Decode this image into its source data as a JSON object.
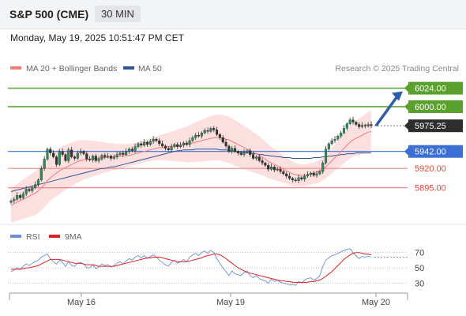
{
  "header": {
    "title": "S&P 500 (CME)",
    "interval": "30 MIN"
  },
  "datetime": "Monday, May 19, 2025 10:51:47 PM CET",
  "legend": {
    "ma20_bb": "MA 20 + Bollinger Bands",
    "ma50": "MA 50",
    "credit": "Research © 2025 Trading Central"
  },
  "rsi_legend": {
    "rsi": "RSI",
    "ma9": "9MA"
  },
  "colors": {
    "ma20": "#f47c7c",
    "ma50": "#2f5597",
    "bb_fill": "#fbd9d9",
    "resistance": "#5aa02c",
    "support": "#f08a8a",
    "pivot": "#3b6fd4",
    "current": "#333333",
    "arrow": "#2c5ea8",
    "rsi": "#6a8fd6",
    "rsi_ma": "#e02020"
  },
  "chart_data": [
    {
      "type": "candlestick",
      "x_ticks": [
        "May 16",
        "May 19",
        "May 20"
      ],
      "y_range": [
        5870,
        6040
      ],
      "levels": [
        {
          "label": "6024.00",
          "value": 6024.0,
          "kind": "resistance"
        },
        {
          "label": "6000.00",
          "value": 6000.0,
          "kind": "resistance"
        },
        {
          "label": "5975.25",
          "value": 5975.25,
          "kind": "current"
        },
        {
          "label": "5942.00",
          "value": 5942.0,
          "kind": "pivot"
        },
        {
          "label": "5920.00",
          "value": 5920.0,
          "kind": "support"
        },
        {
          "label": "5895.00",
          "value": 5895.0,
          "kind": "support"
        }
      ],
      "close": [
        5878,
        5880,
        5885,
        5882,
        5887,
        5893,
        5891,
        5895,
        5899,
        5905,
        5920,
        5932,
        5945,
        5940,
        5935,
        5925,
        5942,
        5938,
        5930,
        5944,
        5935,
        5933,
        5940,
        5942,
        5939,
        5932,
        5931,
        5936,
        5930,
        5932,
        5937,
        5935,
        5936,
        5933,
        5935,
        5938,
        5940,
        5938,
        5942,
        5945,
        5943,
        5948,
        5952,
        5950,
        5954,
        5951,
        5955,
        5958,
        5956,
        5952,
        5949,
        5946,
        5944,
        5948,
        5951,
        5948,
        5950,
        5953,
        5951,
        5956,
        5960,
        5963,
        5962,
        5966,
        5969,
        5968,
        5972,
        5970,
        5964,
        5960,
        5954,
        5949,
        5942,
        5946,
        5942,
        5940,
        5938,
        5941,
        5943,
        5938,
        5933,
        5935,
        5930,
        5927,
        5924,
        5919,
        5922,
        5918,
        5919,
        5916,
        5913,
        5910,
        5907,
        5905,
        5904,
        5908,
        5906,
        5910,
        5912,
        5914,
        5911,
        5913,
        5916,
        5927,
        5945,
        5952,
        5956,
        5958,
        5962,
        5966,
        5972,
        5978,
        5983,
        5980,
        5977,
        5974,
        5976,
        5975,
        5977,
        5975.25
      ],
      "ma20": [
        5872,
        5874,
        5876,
        5878,
        5880,
        5882,
        5884,
        5886,
        5888,
        5891,
        5895,
        5899,
        5904,
        5908,
        5911,
        5914,
        5917,
        5919,
        5921,
        5923,
        5925,
        5927,
        5929,
        5930,
        5931,
        5932,
        5932,
        5933,
        5933,
        5933,
        5934,
        5934,
        5934,
        5935,
        5935,
        5935,
        5936,
        5936,
        5937,
        5937,
        5938,
        5939,
        5940,
        5941,
        5942,
        5943,
        5944,
        5945,
        5946,
        5947,
        5947,
        5948,
        5948,
        5949,
        5949,
        5950,
        5950,
        5951,
        5951,
        5952,
        5953,
        5954,
        5955,
        5956,
        5957,
        5958,
        5959,
        5960,
        5960,
        5960,
        5959,
        5958,
        5957,
        5955,
        5953,
        5951,
        5949,
        5947,
        5945,
        5943,
        5941,
        5939,
        5937,
        5935,
        5932,
        5929,
        5927,
        5925,
        5923,
        5921,
        5919,
        5917,
        5915,
        5913,
        5912,
        5911,
        5911,
        5911,
        5912,
        5913,
        5914,
        5915,
        5917,
        5919,
        5922,
        5926,
        5930,
        5934,
        5938,
        5942,
        5946,
        5950,
        5954,
        5957,
        5959,
        5961,
        5963,
        5965,
        5967,
        5968
      ],
      "ma50": [
        5890,
        5891,
        5892,
        5893,
        5894,
        5895,
        5896,
        5897,
        5898,
        5899,
        5900,
        5901,
        5902,
        5903,
        5904,
        5905,
        5906,
        5907,
        5908,
        5909,
        5910,
        5911,
        5912,
        5913,
        5914,
        5915,
        5916,
        5917,
        5918,
        5919,
        5920,
        5920,
        5921,
        5922,
        5922,
        5923,
        5924,
        5925,
        5926,
        5927,
        5928,
        5929,
        5930,
        5931,
        5932,
        5933,
        5934,
        5935,
        5936,
        5937,
        5938,
        5939,
        5940,
        5941,
        5942,
        5943,
        5943,
        5944,
        5944,
        5944,
        5944,
        5945,
        5945,
        5945,
        5945,
        5945,
        5945,
        5945,
        5945,
        5944,
        5944,
        5944,
        5943,
        5943,
        5942,
        5942,
        5941,
        5941,
        5940,
        5940,
        5939,
        5939,
        5938,
        5938,
        5937,
        5937,
        5936,
        5936,
        5935,
        5935,
        5934,
        5934,
        5934,
        5933,
        5933,
        5933,
        5933,
        5933,
        5933,
        5933,
        5934,
        5934,
        5934,
        5935,
        5935,
        5936,
        5936,
        5937,
        5937,
        5938,
        5938,
        5939,
        5939,
        5939,
        5940,
        5940,
        5940,
        5940,
        5940,
        5940
      ],
      "bb_width": 22,
      "projection": {
        "from": 5975.25,
        "to": 6024.0
      }
    },
    {
      "type": "line",
      "name": "RSI",
      "y_ticks": [
        70,
        50,
        30
      ],
      "y_range": [
        20,
        80
      ],
      "rsi": [
        45,
        47,
        50,
        48,
        52,
        55,
        53,
        56,
        58,
        60,
        64,
        66,
        68,
        62,
        58,
        55,
        60,
        57,
        52,
        58,
        53,
        52,
        56,
        57,
        55,
        50,
        50,
        54,
        49,
        51,
        55,
        53,
        54,
        51,
        53,
        56,
        58,
        55,
        59,
        62,
        60,
        64,
        66,
        63,
        66,
        62,
        65,
        67,
        64,
        60,
        57,
        54,
        52,
        57,
        60,
        56,
        58,
        61,
        58,
        64,
        67,
        69,
        66,
        70,
        72,
        69,
        73,
        70,
        62,
        56,
        50,
        45,
        40,
        46,
        42,
        41,
        40,
        44,
        46,
        40,
        37,
        40,
        36,
        34,
        33,
        30,
        35,
        32,
        34,
        31,
        30,
        29,
        28,
        28,
        27,
        32,
        30,
        34,
        36,
        37,
        34,
        36,
        40,
        52,
        60,
        63,
        66,
        67,
        69,
        71,
        73,
        74,
        75,
        70,
        66,
        62,
        65,
        64,
        65,
        64
      ],
      "ma9": [
        48,
        48,
        48,
        48,
        49,
        50,
        50,
        51,
        52,
        53,
        55,
        57,
        59,
        61,
        61,
        61,
        61,
        60,
        59,
        58,
        57,
        56,
        56,
        56,
        55,
        54,
        54,
        54,
        53,
        52,
        52,
        52,
        52,
        52,
        52,
        53,
        54,
        55,
        56,
        57,
        58,
        59,
        60,
        61,
        62,
        63,
        63,
        64,
        64,
        64,
        63,
        62,
        61,
        60,
        59,
        58,
        58,
        58,
        58,
        59,
        60,
        61,
        62,
        63,
        65,
        66,
        67,
        68,
        68,
        67,
        65,
        62,
        59,
        56,
        53,
        50,
        48,
        46,
        44,
        43,
        42,
        41,
        40,
        39,
        38,
        37,
        36,
        35,
        34,
        33,
        33,
        32,
        32,
        31,
        31,
        31,
        31,
        31,
        31,
        32,
        32,
        33,
        34,
        36,
        39,
        42,
        45,
        49,
        53,
        57,
        61,
        64,
        67,
        69,
        70,
        70,
        69,
        68,
        68,
        67
      ]
    }
  ]
}
